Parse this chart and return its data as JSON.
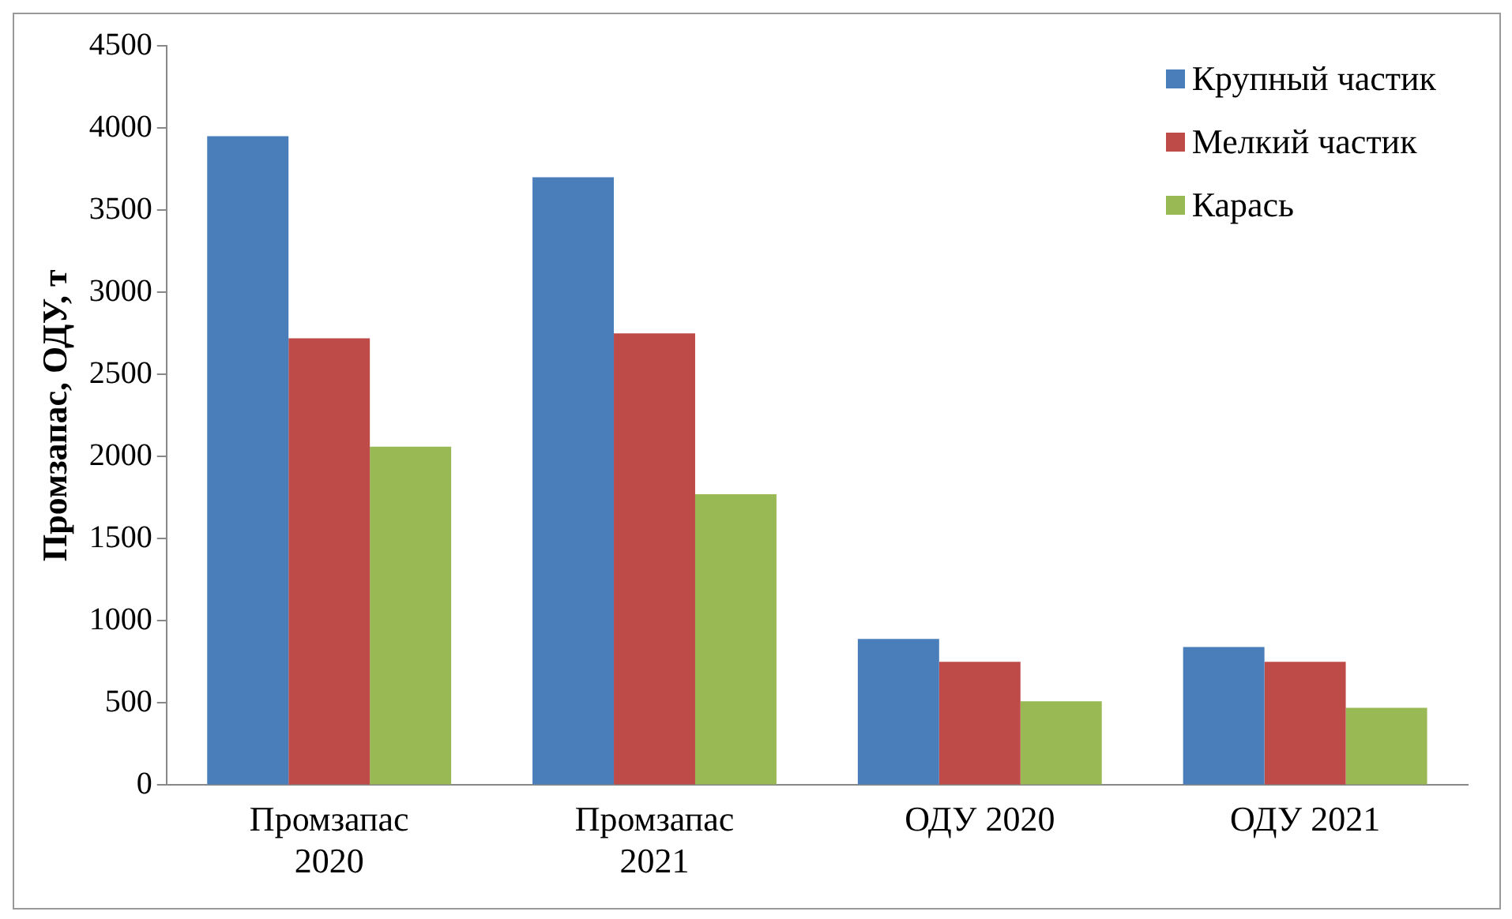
{
  "chart_data": {
    "type": "bar",
    "ylabel": "Промзапас, ОДУ, т",
    "categories": [
      "Промзапас\n2020",
      "Промзапас\n2021",
      "ОДУ 2020",
      "ОДУ 2021"
    ],
    "series": [
      {
        "name": "Крупный частик",
        "color": "#4a7ebb",
        "values": [
          3950,
          3700,
          890,
          840
        ]
      },
      {
        "name": "Мелкий частик",
        "color": "#be4b48",
        "values": [
          2720,
          2750,
          750,
          750
        ]
      },
      {
        "name": "Карась",
        "color": "#98b954",
        "values": [
          2060,
          1770,
          510,
          470
        ]
      }
    ],
    "ylim": [
      0,
      4500
    ],
    "yticks": [
      0,
      500,
      1000,
      1500,
      2000,
      2500,
      3000,
      3500,
      4000,
      4500
    ],
    "grid": false,
    "legend": "top right"
  }
}
